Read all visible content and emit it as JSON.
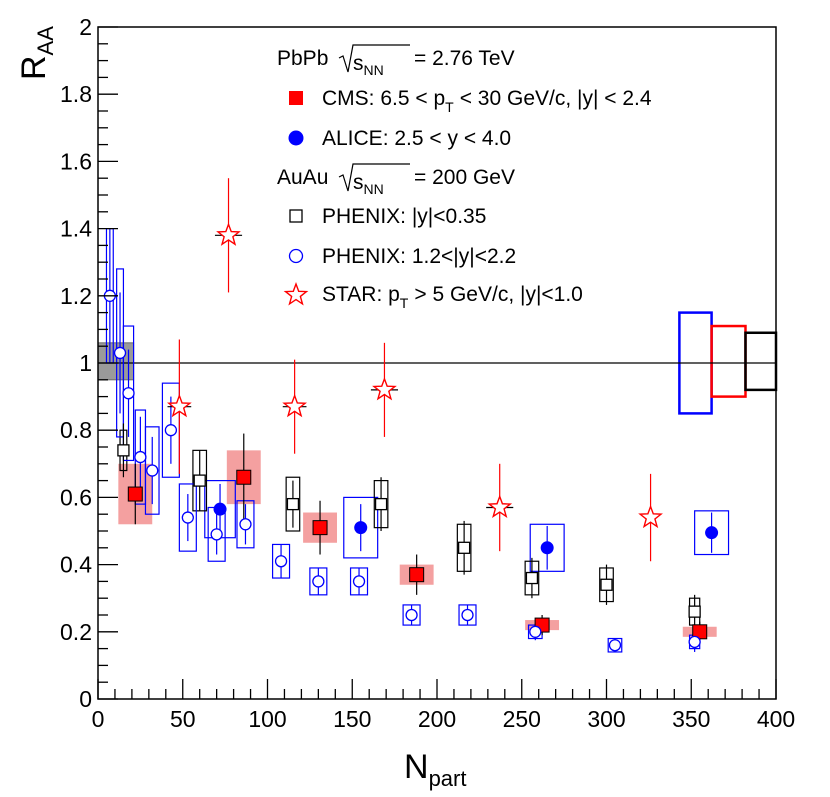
{
  "chart_data": {
    "type": "scatter",
    "xlabel": "N",
    "xlabel_sub": "part",
    "ylabel": "R",
    "ylabel_sub": "AA",
    "xlim": [
      0,
      400
    ],
    "ylim": [
      0,
      2
    ],
    "x_ticks": [
      0,
      50,
      100,
      150,
      200,
      250,
      300,
      350,
      400
    ],
    "x_tick_labels": [
      "0",
      "50",
      "100",
      "150",
      "200",
      "250",
      "300",
      "350",
      "400"
    ],
    "y_ticks": [
      0,
      0.2,
      0.4,
      0.6,
      0.8,
      1,
      1.2,
      1.4,
      1.6,
      1.8,
      2
    ],
    "y_tick_labels": [
      "0",
      "0.2",
      "0.4",
      "0.6",
      "0.8",
      "1",
      "1.2",
      "1.4",
      "1.6",
      "1.8",
      "2"
    ],
    "reference_line": 1,
    "legend": {
      "placement": "top-right",
      "header_pbpb": {
        "prefix": "PbPb",
        "sqrt_base": "s",
        "sqrt_sub": "NN",
        "suffix": "= 2.76 TeV"
      },
      "cms": {
        "p1": "CMS: 6.5 <  p",
        "p1_sub": "T",
        "p2": "< 30 GeV/c, |y| < 2.4"
      },
      "alice": {
        "text": "ALICE: 2.5 < y < 4.0"
      },
      "header_auau": {
        "prefix": "AuAu",
        "sqrt_base": "s",
        "sqrt_sub": "NN",
        "suffix": "= 200 GeV"
      },
      "phenix_mid": {
        "text": "PHENIX: |y|<0.35"
      },
      "phenix_fwd": {
        "text": "PHENIX: 1.2<|y|<2.2"
      },
      "star": {
        "p1": "STAR: p",
        "p1_sub": "T",
        "p2": "> 5 GeV/c, |y|<1.0"
      }
    },
    "series": [
      {
        "name": "CMS",
        "color": "#ff0000",
        "syst_color": "#f4a0a0",
        "marker": "filled-square",
        "points": [
          {
            "x": 22,
            "y": 0.61,
            "ystat": 0.09,
            "ysys": 0.09,
            "xsys": 10
          },
          {
            "x": 86,
            "y": 0.66,
            "ystat": 0.13,
            "ysys": 0.08,
            "xsys": 10
          },
          {
            "x": 131,
            "y": 0.51,
            "ystat": 0.08,
            "ysys": 0.045,
            "xsys": 10
          },
          {
            "x": 188,
            "y": 0.37,
            "ystat": 0.06,
            "ysys": 0.03,
            "xsys": 10
          },
          {
            "x": 262,
            "y": 0.22,
            "ystat": 0.03,
            "ysys": 0.015,
            "xsys": 10
          },
          {
            "x": 355,
            "y": 0.2,
            "ystat": 0.03,
            "ysys": 0.015,
            "xsys": 10
          }
        ]
      },
      {
        "name": "ALICE",
        "color": "#0000ff",
        "marker": "filled-circle",
        "points": [
          {
            "x": 72,
            "y": 0.565,
            "ystat": 0.075,
            "ysys": 0.085,
            "xsys": 9
          },
          {
            "x": 155,
            "y": 0.51,
            "ystat": 0.07,
            "ysys": 0.09,
            "xsys": 10
          },
          {
            "x": 265,
            "y": 0.45,
            "ystat": 0.065,
            "ysys": 0.07,
            "xsys": 10
          },
          {
            "x": 362,
            "y": 0.495,
            "ystat": 0.06,
            "ysys": 0.065,
            "xsys": 10
          }
        ]
      },
      {
        "name": "PHENIX |y|<0.35",
        "color": "#000000",
        "marker": "open-square",
        "points": [
          {
            "x": 15,
            "y": 0.74,
            "ystat": 0.08,
            "ysys": 0.06,
            "xsys": 2
          },
          {
            "x": 60,
            "y": 0.65,
            "ystat": 0.09,
            "ysys": 0.09,
            "xsys": 4
          },
          {
            "x": 115,
            "y": 0.58,
            "ystat": 0.07,
            "ysys": 0.08,
            "xsys": 4
          },
          {
            "x": 167,
            "y": 0.58,
            "ystat": 0.08,
            "ysys": 0.07,
            "xsys": 4
          },
          {
            "x": 216,
            "y": 0.45,
            "ystat": 0.08,
            "ysys": 0.07,
            "xsys": 4
          },
          {
            "x": 256,
            "y": 0.36,
            "ystat": 0.06,
            "ysys": 0.05,
            "xsys": 4
          },
          {
            "x": 300,
            "y": 0.34,
            "ystat": 0.06,
            "ysys": 0.05,
            "xsys": 4
          },
          {
            "x": 352,
            "y": 0.26,
            "ystat": 0.05,
            "ysys": 0.04,
            "xsys": 3
          }
        ]
      },
      {
        "name": "PHENIX 1.2<|y|<2.2",
        "color": "#0000ff",
        "marker": "open-circle",
        "points": [
          {
            "x": 7,
            "y": 1.2,
            "ystat": 0.2,
            "ysys": 0.2,
            "xsys": 2
          },
          {
            "x": 13,
            "y": 1.03,
            "ystat": 0.18,
            "ysys": 0.25,
            "xsys": 2
          },
          {
            "x": 18,
            "y": 0.91,
            "ystat": 0.13,
            "ysys": 0.2,
            "xsys": 3
          },
          {
            "x": 25,
            "y": 0.72,
            "ystat": 0.12,
            "ysys": 0.14,
            "xsys": 3
          },
          {
            "x": 32,
            "y": 0.68,
            "ystat": 0.1,
            "ysys": 0.13,
            "xsys": 4
          },
          {
            "x": 43,
            "y": 0.8,
            "ystat": 0.1,
            "ysys": 0.14,
            "xsys": 5
          },
          {
            "x": 53,
            "y": 0.54,
            "ystat": 0.07,
            "ysys": 0.1,
            "xsys": 5
          },
          {
            "x": 70,
            "y": 0.49,
            "ystat": 0.06,
            "ysys": 0.08,
            "xsys": 5
          },
          {
            "x": 87,
            "y": 0.52,
            "ystat": 0.06,
            "ysys": 0.07,
            "xsys": 5
          },
          {
            "x": 108,
            "y": 0.41,
            "ystat": 0.05,
            "ysys": 0.05,
            "xsys": 5
          },
          {
            "x": 130,
            "y": 0.35,
            "ystat": 0.04,
            "ysys": 0.04,
            "xsys": 5
          },
          {
            "x": 154,
            "y": 0.35,
            "ystat": 0.04,
            "ysys": 0.04,
            "xsys": 5
          },
          {
            "x": 185,
            "y": 0.25,
            "ystat": 0.03,
            "ysys": 0.03,
            "xsys": 5
          },
          {
            "x": 218,
            "y": 0.25,
            "ystat": 0.03,
            "ysys": 0.03,
            "xsys": 5
          },
          {
            "x": 258,
            "y": 0.2,
            "ystat": 0.025,
            "ysys": 0.02,
            "xsys": 4
          },
          {
            "x": 305,
            "y": 0.16,
            "ystat": 0.02,
            "ysys": 0.02,
            "xsys": 4
          },
          {
            "x": 352,
            "y": 0.17,
            "ystat": 0.03,
            "ysys": 0.02,
            "xsys": 3
          }
        ]
      },
      {
        "name": "STAR",
        "color": "#ff0000",
        "marker": "open-star",
        "points": [
          {
            "x": 48,
            "y": 0.87,
            "ystat": 0.2,
            "xerr": 7
          },
          {
            "x": 77,
            "y": 1.38,
            "ystat": 0.17,
            "xerr": 8
          },
          {
            "x": 116,
            "y": 0.87,
            "ystat": 0.14,
            "xerr": 7
          },
          {
            "x": 169,
            "y": 0.92,
            "ystat": 0.14,
            "xerr": 8
          },
          {
            "x": 237,
            "y": 0.57,
            "ystat": 0.13,
            "xerr": 8
          },
          {
            "x": 326,
            "y": 0.54,
            "ystat": 0.13,
            "xerr": 0
          }
        ]
      }
    ],
    "global_uncertainties": [
      {
        "label": "PHENIX fwd norm",
        "xlow": 0,
        "xhigh": 21,
        "ylow": 0.95,
        "yhigh": 1.06,
        "fill": "#888888",
        "stroke": "#6a6a6a"
      },
      {
        "label": "ALICE norm",
        "xlow": 343,
        "xhigh": 362,
        "ylow": 0.85,
        "yhigh": 1.15,
        "fill": "none",
        "stroke": "#0000ff"
      },
      {
        "label": "CMS norm",
        "xlow": 362,
        "xhigh": 382,
        "ylow": 0.9,
        "yhigh": 1.11,
        "fill": "none",
        "stroke": "#ff0000"
      },
      {
        "label": "PHENIX mid norm",
        "xlow": 382,
        "xhigh": 402,
        "ylow": 0.92,
        "yhigh": 1.09,
        "fill": "none",
        "stroke": "#000000"
      }
    ]
  }
}
